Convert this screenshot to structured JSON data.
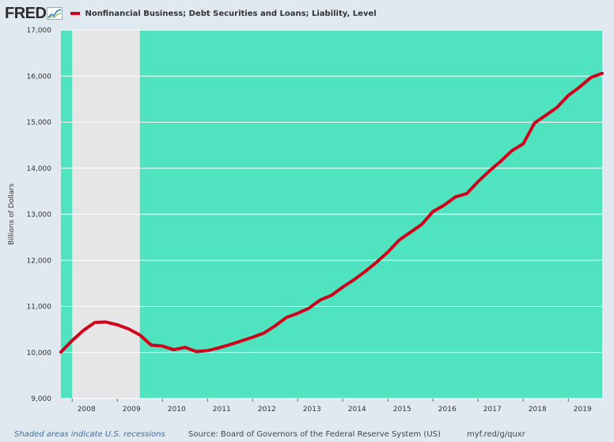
{
  "header": {
    "logo_text": "FRED",
    "logo_icon": "fred-chart-icon",
    "series_label": "Nonfinancial Business; Debt Securities and Loans; Liability, Level"
  },
  "footer": {
    "recession_note": "Shaded areas indicate U.S. recessions",
    "source": "Source: Board of Governors of the Federal Reserve System (US)",
    "short_url": "myf.red/g/quxr"
  },
  "colors": {
    "page_bg": "#e1e9f0",
    "plot_bg": "#4fe3c0",
    "recession": "#e6e6e6",
    "line": "#d0021b",
    "grid": "#ffffff"
  },
  "chart_data": {
    "type": "line",
    "title": "",
    "xlabel": "",
    "ylabel": "Billions of Dollars",
    "ylim": [
      9000,
      17000
    ],
    "y_ticks": [
      9000,
      10000,
      11000,
      12000,
      13000,
      14000,
      15000,
      16000,
      17000
    ],
    "y_tick_labels": [
      "9,000",
      "10,000",
      "11,000",
      "12,000",
      "13,000",
      "14,000",
      "15,000",
      "16,000",
      "17,000"
    ],
    "x_ticks": [
      2008,
      2009,
      2010,
      2011,
      2012,
      2013,
      2014,
      2015,
      2016,
      2017,
      2018,
      2019
    ],
    "x_tick_labels": [
      "2008",
      "2009",
      "2010",
      "2011",
      "2012",
      "2013",
      "2014",
      "2015",
      "2016",
      "2017",
      "2018",
      "2019"
    ],
    "xlim": [
      2007.75,
      2019.75
    ],
    "grid": true,
    "recessions": [
      [
        2008.0,
        2009.5
      ]
    ],
    "series": [
      {
        "name": "Nonfinancial Business; Debt Securities and Loans; Liability, Level",
        "x": [
          2007.75,
          2008.0,
          2008.25,
          2008.5,
          2008.75,
          2009.0,
          2009.25,
          2009.5,
          2009.75,
          2010.0,
          2010.25,
          2010.5,
          2010.75,
          2011.0,
          2011.25,
          2011.5,
          2011.75,
          2012.0,
          2012.25,
          2012.5,
          2012.75,
          2013.0,
          2013.25,
          2013.5,
          2013.75,
          2014.0,
          2014.25,
          2014.5,
          2014.75,
          2015.0,
          2015.25,
          2015.5,
          2015.75,
          2016.0,
          2016.25,
          2016.5,
          2016.75,
          2017.0,
          2017.25,
          2017.5,
          2017.75,
          2018.0,
          2018.25,
          2018.5,
          2018.75,
          2019.0,
          2019.25,
          2019.5,
          2019.75
        ],
        "values": [
          10010,
          10260,
          10480,
          10650,
          10660,
          10600,
          10510,
          10380,
          10160,
          10140,
          10060,
          10110,
          10020,
          10040,
          10100,
          10170,
          10250,
          10330,
          10420,
          10580,
          10760,
          10850,
          10960,
          11140,
          11240,
          11420,
          11580,
          11760,
          11960,
          12180,
          12440,
          12610,
          12780,
          13060,
          13200,
          13380,
          13450,
          13710,
          13940,
          14150,
          14380,
          14530,
          14980,
          15150,
          15320,
          15580,
          15760,
          15970,
          16060
        ]
      }
    ]
  }
}
